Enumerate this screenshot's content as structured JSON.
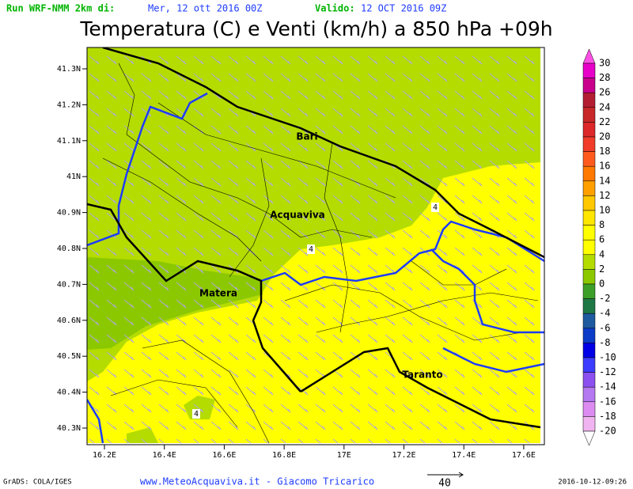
{
  "header": {
    "run_label": "Run WRF-NMM 2km di:",
    "run_date": "Mer, 12 ott 2016 00Z",
    "valid_label": "Valido:",
    "valid_date": "12 OCT 2016 09Z",
    "title": "Temperatura (C) e Venti (km/h) a 850 hPa +09h"
  },
  "map": {
    "lat_labels": [
      "41.3N",
      "41.2N",
      "41.1N",
      "41N",
      "40.9N",
      "40.8N",
      "40.7N",
      "40.6N",
      "40.5N",
      "40.4N",
      "40.3N"
    ],
    "lon_labels": [
      "16.2E",
      "16.4E",
      "16.6E",
      "16.8E",
      "17E",
      "17.2E",
      "17.4E",
      "17.6E"
    ],
    "cities": [
      "Bari",
      "Acquaviva",
      "Matera",
      "Taranto"
    ],
    "contour_labels": [
      "4",
      "4",
      "4"
    ]
  },
  "colorbar": {
    "labels": [
      "30",
      "28",
      "26",
      "24",
      "22",
      "20",
      "18",
      "16",
      "14",
      "12",
      "10",
      "8",
      "6",
      "4",
      "2",
      "0",
      "-2",
      "-4",
      "-6",
      "-8",
      "-10",
      "-12",
      "-14",
      "-16",
      "-18",
      "-20"
    ],
    "colors": [
      "#e600c8",
      "#c8008c",
      "#b41e32",
      "#c82828",
      "#dc2828",
      "#f03c28",
      "#ff5a1e",
      "#ff7800",
      "#ffa000",
      "#ffc800",
      "#ffe600",
      "#ffff00",
      "#ffff00",
      "#b4dc00",
      "#8cc800",
      "#3ca028",
      "#1e7846",
      "#1e5aa0",
      "#0a3cc8",
      "#0000e6",
      "#3c3cff",
      "#8c50f0",
      "#b478f0",
      "#dc8cf0",
      "#f0b4f0"
    ]
  },
  "footer": {
    "software": "GrADS: COLA/IGES",
    "credit": "www.MeteoAcquaviva.it - Giacomo Tricarico",
    "wind_scale": "40",
    "timestamp": "2016-10-12-09:26"
  }
}
